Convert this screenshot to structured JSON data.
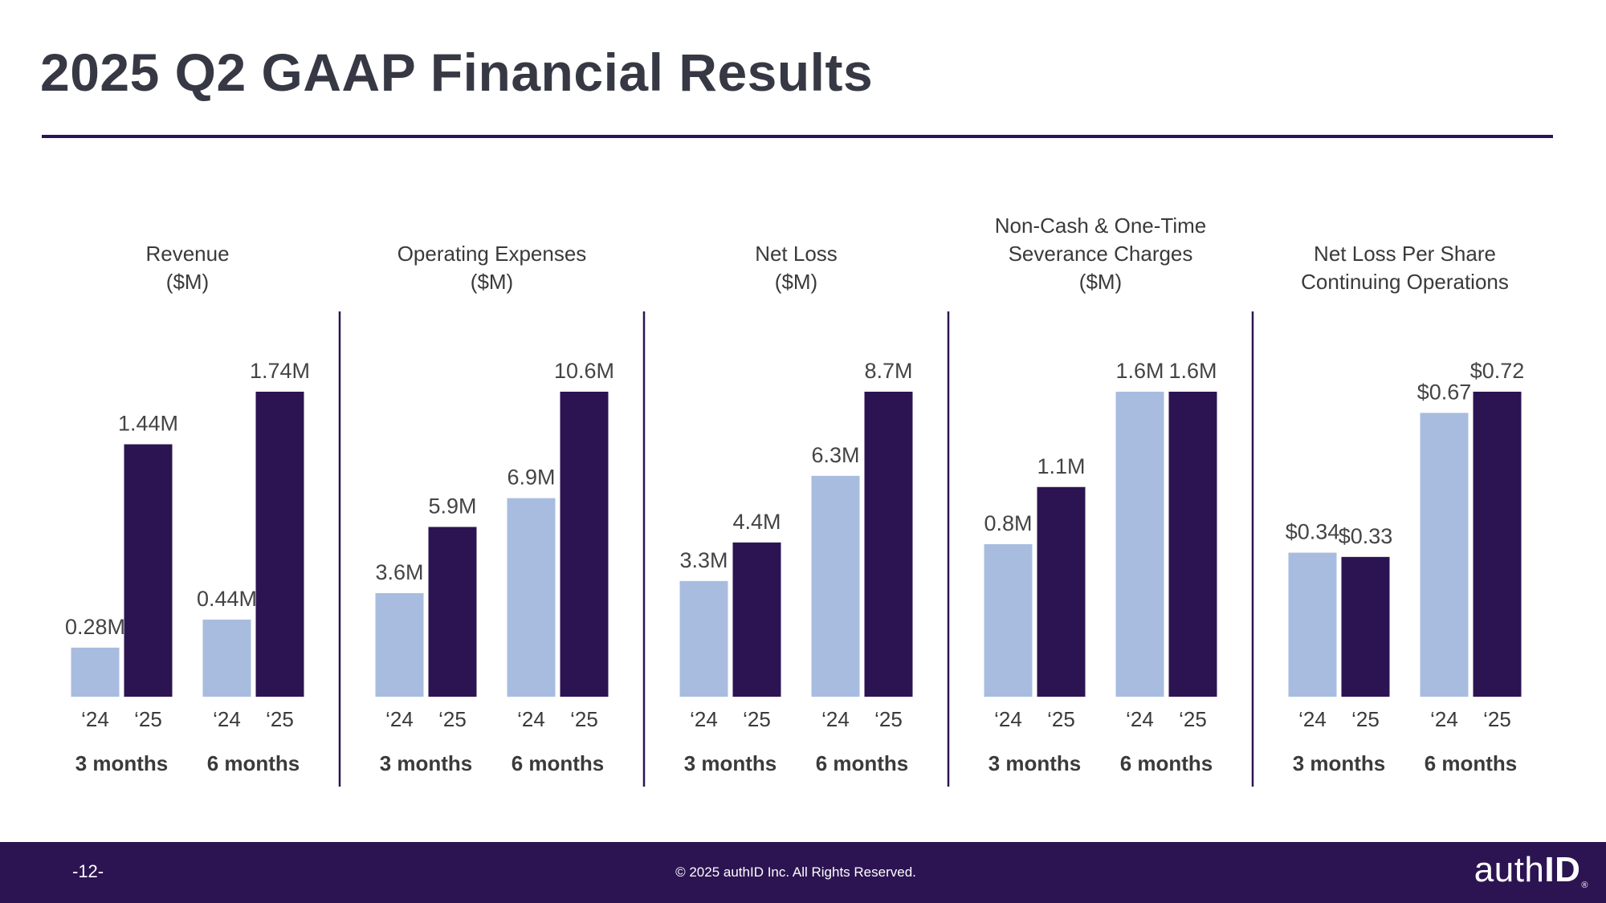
{
  "slide": {
    "title": "2025 Q2 GAAP Financial Results",
    "page_number": "-12-",
    "copyright": "© 2025 authID Inc. All Rights Reserved.",
    "logo_text_light": "auth",
    "logo_text_bold": "ID",
    "logo_mark": "®"
  },
  "colors": {
    "bar_2024": "#a8bcdf",
    "bar_2025": "#2c1452",
    "title": "#363944",
    "divider": "#2c1452",
    "footer_bg": "#2c1452"
  },
  "chart_data": [
    {
      "type": "bar",
      "title_lines": [
        "Revenue",
        "($M)"
      ],
      "groups": [
        "3 months",
        "6 months"
      ],
      "series_labels": [
        "‘24",
        "‘25"
      ],
      "series": [
        {
          "name": "2024",
          "values": [
            0.28,
            0.44
          ],
          "labels": [
            "0.28M",
            "0.44M"
          ]
        },
        {
          "name": "2025",
          "values": [
            1.44,
            1.74
          ],
          "labels": [
            "1.44M",
            "1.74M"
          ]
        }
      ]
    },
    {
      "type": "bar",
      "title_lines": [
        "Operating Expenses",
        "($M)"
      ],
      "groups": [
        "3 months",
        "6 months"
      ],
      "series_labels": [
        "‘24",
        "‘25"
      ],
      "series": [
        {
          "name": "2024",
          "values": [
            3.6,
            6.9
          ],
          "labels": [
            "3.6M",
            "6.9M"
          ]
        },
        {
          "name": "2025",
          "values": [
            5.9,
            10.6
          ],
          "labels": [
            "5.9M",
            "10.6M"
          ]
        }
      ]
    },
    {
      "type": "bar",
      "title_lines": [
        "Net Loss",
        "($M)"
      ],
      "groups": [
        "3 months",
        "6 months"
      ],
      "series_labels": [
        "‘24",
        "‘25"
      ],
      "series": [
        {
          "name": "2024",
          "values": [
            3.3,
            6.3
          ],
          "labels": [
            "3.3M",
            "6.3M"
          ]
        },
        {
          "name": "2025",
          "values": [
            4.4,
            8.7
          ],
          "labels": [
            "4.4M",
            "8.7M"
          ]
        }
      ]
    },
    {
      "type": "bar",
      "title_lines": [
        "Non-Cash & One-Time",
        "Severance Charges",
        "($M)"
      ],
      "groups": [
        "3 months",
        "6 months"
      ],
      "series_labels": [
        "‘24",
        "‘25"
      ],
      "series": [
        {
          "name": "2024",
          "values": [
            0.8,
            1.6
          ],
          "labels": [
            "0.8M",
            "1.6M"
          ]
        },
        {
          "name": "2025",
          "values": [
            1.1,
            1.6
          ],
          "labels": [
            "1.1M",
            "1.6M"
          ]
        }
      ]
    },
    {
      "type": "bar",
      "title_lines": [
        "Net Loss Per Share",
        "Continuing Operations"
      ],
      "groups": [
        "3 months",
        "6 months"
      ],
      "series_labels": [
        "‘24",
        "‘25"
      ],
      "series": [
        {
          "name": "2024",
          "values": [
            0.34,
            0.67
          ],
          "labels": [
            "$0.34",
            "$0.67"
          ]
        },
        {
          "name": "2025",
          "values": [
            0.33,
            0.72
          ],
          "labels": [
            "$0.33",
            "$0.72"
          ]
        }
      ]
    }
  ]
}
